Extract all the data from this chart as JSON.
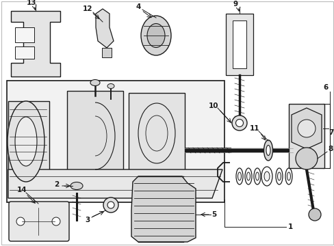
{
  "fig_width": 4.89,
  "fig_height": 3.6,
  "dpi": 100,
  "background_color": "#ffffff",
  "dark": "#1a1a1a"
}
